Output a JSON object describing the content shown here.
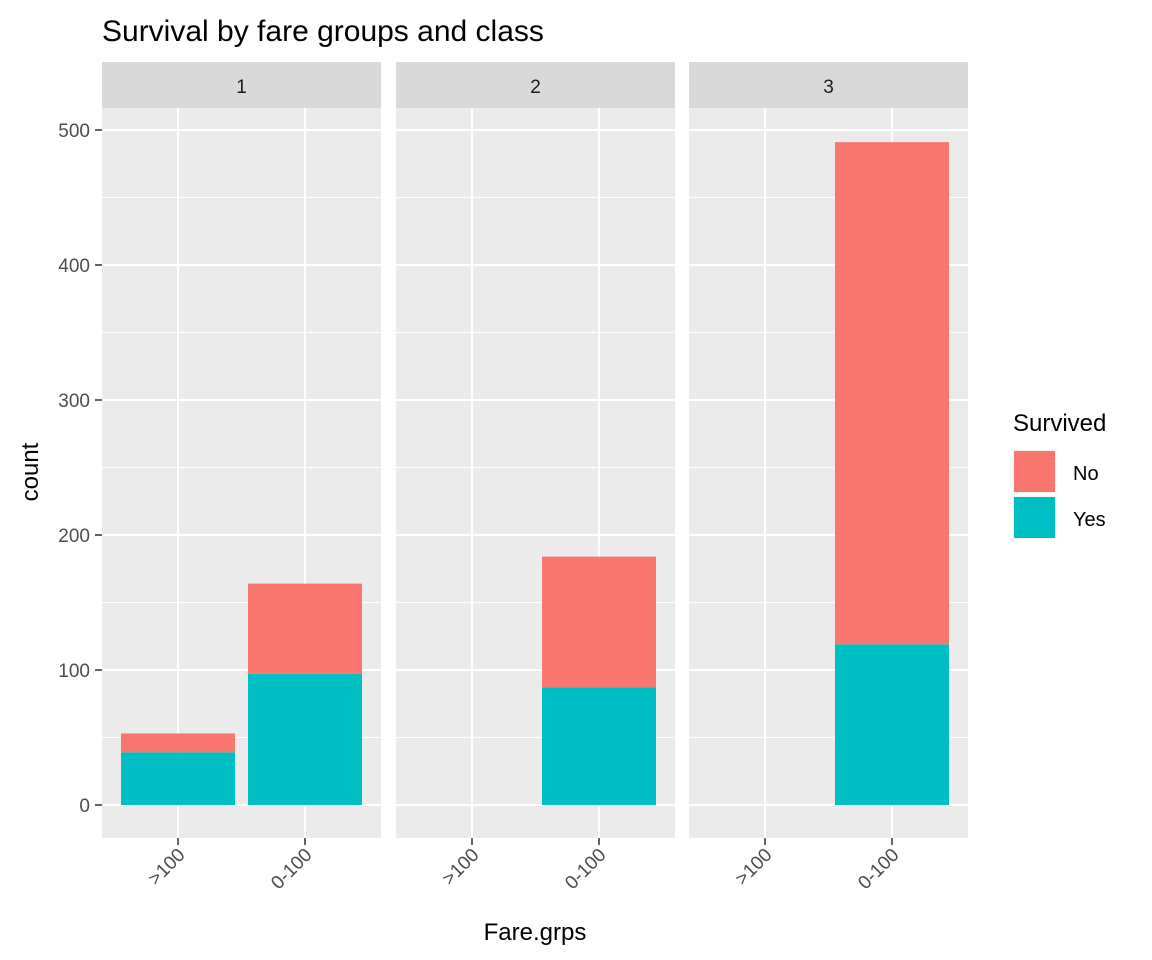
{
  "chart_data": {
    "type": "bar",
    "stacked": true,
    "title": "Survival by fare groups and class",
    "xlabel": "Fare.grps",
    "ylabel": "count",
    "ylim": [
      0,
      540
    ],
    "yticks": [
      0,
      100,
      200,
      300,
      400,
      500
    ],
    "categories": [
      ">100",
      "0-100"
    ],
    "grid": true,
    "legend": {
      "title": "Survived",
      "position": "right",
      "entries": [
        {
          "name": "No",
          "color": "#F8766D"
        },
        {
          "name": "Yes",
          "color": "#00BFC4"
        }
      ]
    },
    "panels": [
      {
        "label": "1",
        "series": [
          {
            "name": "Yes",
            "values": [
              39,
              97
            ]
          },
          {
            "name": "No",
            "values": [
              14,
              67
            ]
          }
        ]
      },
      {
        "label": "2",
        "series": [
          {
            "name": "Yes",
            "values": [
              0,
              87
            ]
          },
          {
            "name": "No",
            "values": [
              0,
              97
            ]
          }
        ]
      },
      {
        "label": "3",
        "series": [
          {
            "name": "Yes",
            "values": [
              0,
              119
            ]
          },
          {
            "name": "No",
            "values": [
              0,
              372
            ]
          }
        ]
      }
    ]
  }
}
